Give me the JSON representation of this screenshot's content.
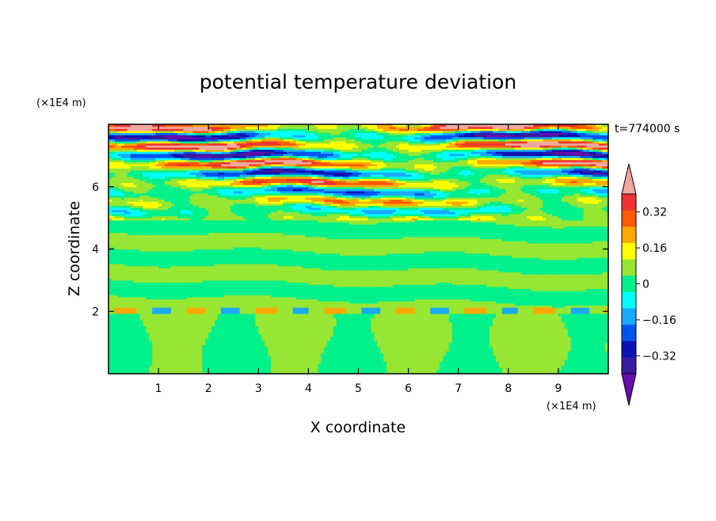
{
  "chart_data": {
    "type": "heatmap",
    "title": "potential temperature deviation",
    "xlabel": "X coordinate",
    "ylabel": "Z coordinate",
    "x_unit": "(×1E4 m)",
    "z_unit": "(×1E4 m)",
    "time_label": "t=774000 s",
    "xlim": [
      0,
      10
    ],
    "zlim": [
      0,
      8
    ],
    "x_ticks": [
      "1",
      "2",
      "3",
      "4",
      "5",
      "6",
      "7",
      "8",
      "9"
    ],
    "x_tick_values": [
      1,
      2,
      3,
      4,
      5,
      6,
      7,
      8,
      9
    ],
    "z_ticks": [
      "2",
      "4",
      "6"
    ],
    "z_tick_values": [
      2,
      4,
      6
    ],
    "colorbar": {
      "levels": [
        -0.48,
        -0.4,
        -0.32,
        -0.24,
        -0.16,
        -0.08,
        0,
        0.08,
        0.16,
        0.24,
        0.32,
        0.4,
        0.48
      ],
      "colors": [
        "#6a0dad",
        "#3a1aa0",
        "#0a14b4",
        "#0055f0",
        "#18aaff",
        "#00ffff",
        "#00f08c",
        "#96e632",
        "#ffff00",
        "#ffaa00",
        "#ff5a00",
        "#f03232",
        "#f0a8a0"
      ],
      "tick_labels": [
        "0.32",
        "0.16",
        "0",
        "−0.16",
        "−0.32"
      ],
      "tick_values": [
        0.32,
        0.16,
        0,
        -0.16,
        -0.32
      ]
    },
    "description_regions": {
      "upper_layer_z": [
        5,
        8
      ],
      "lower_layer_z": [
        0,
        5
      ]
    }
  }
}
